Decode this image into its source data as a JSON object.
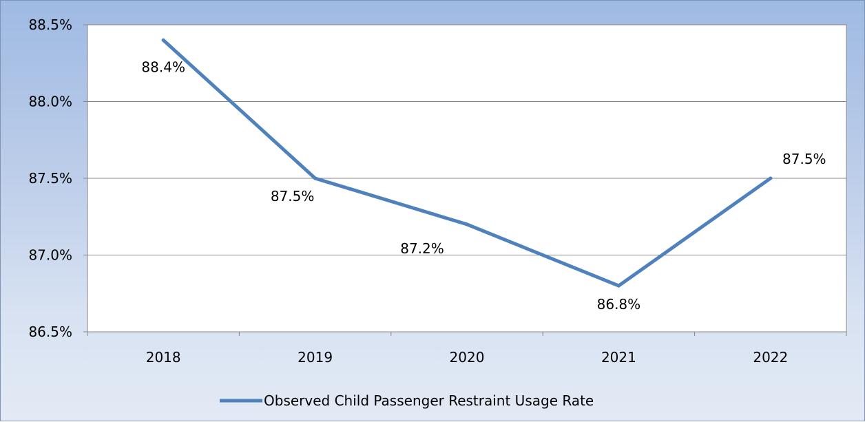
{
  "chart_data": {
    "type": "line",
    "categories": [
      "2018",
      "2019",
      "2020",
      "2021",
      "2022"
    ],
    "series": [
      {
        "name": "Observed Child Passenger Restraint Usage Rate",
        "values": [
          88.4,
          87.5,
          87.2,
          86.8,
          87.5
        ],
        "data_labels": [
          "88.4%",
          "87.5%",
          "87.2%",
          "86.8%",
          "87.5%"
        ],
        "color": "#4f81bd"
      }
    ],
    "ylim": [
      86.5,
      88.5
    ],
    "yticks": [
      86.5,
      87.0,
      87.5,
      88.0,
      88.5
    ],
    "ytick_labels": [
      "86.5%",
      "87.0%",
      "87.5%",
      "88.0%",
      "88.5%"
    ],
    "grid": true,
    "legend_position": "bottom",
    "colors": {
      "plot_background": "#ffffff",
      "gridline": "#868686",
      "axis": "#868686",
      "series_line": "#4f81bd"
    }
  }
}
